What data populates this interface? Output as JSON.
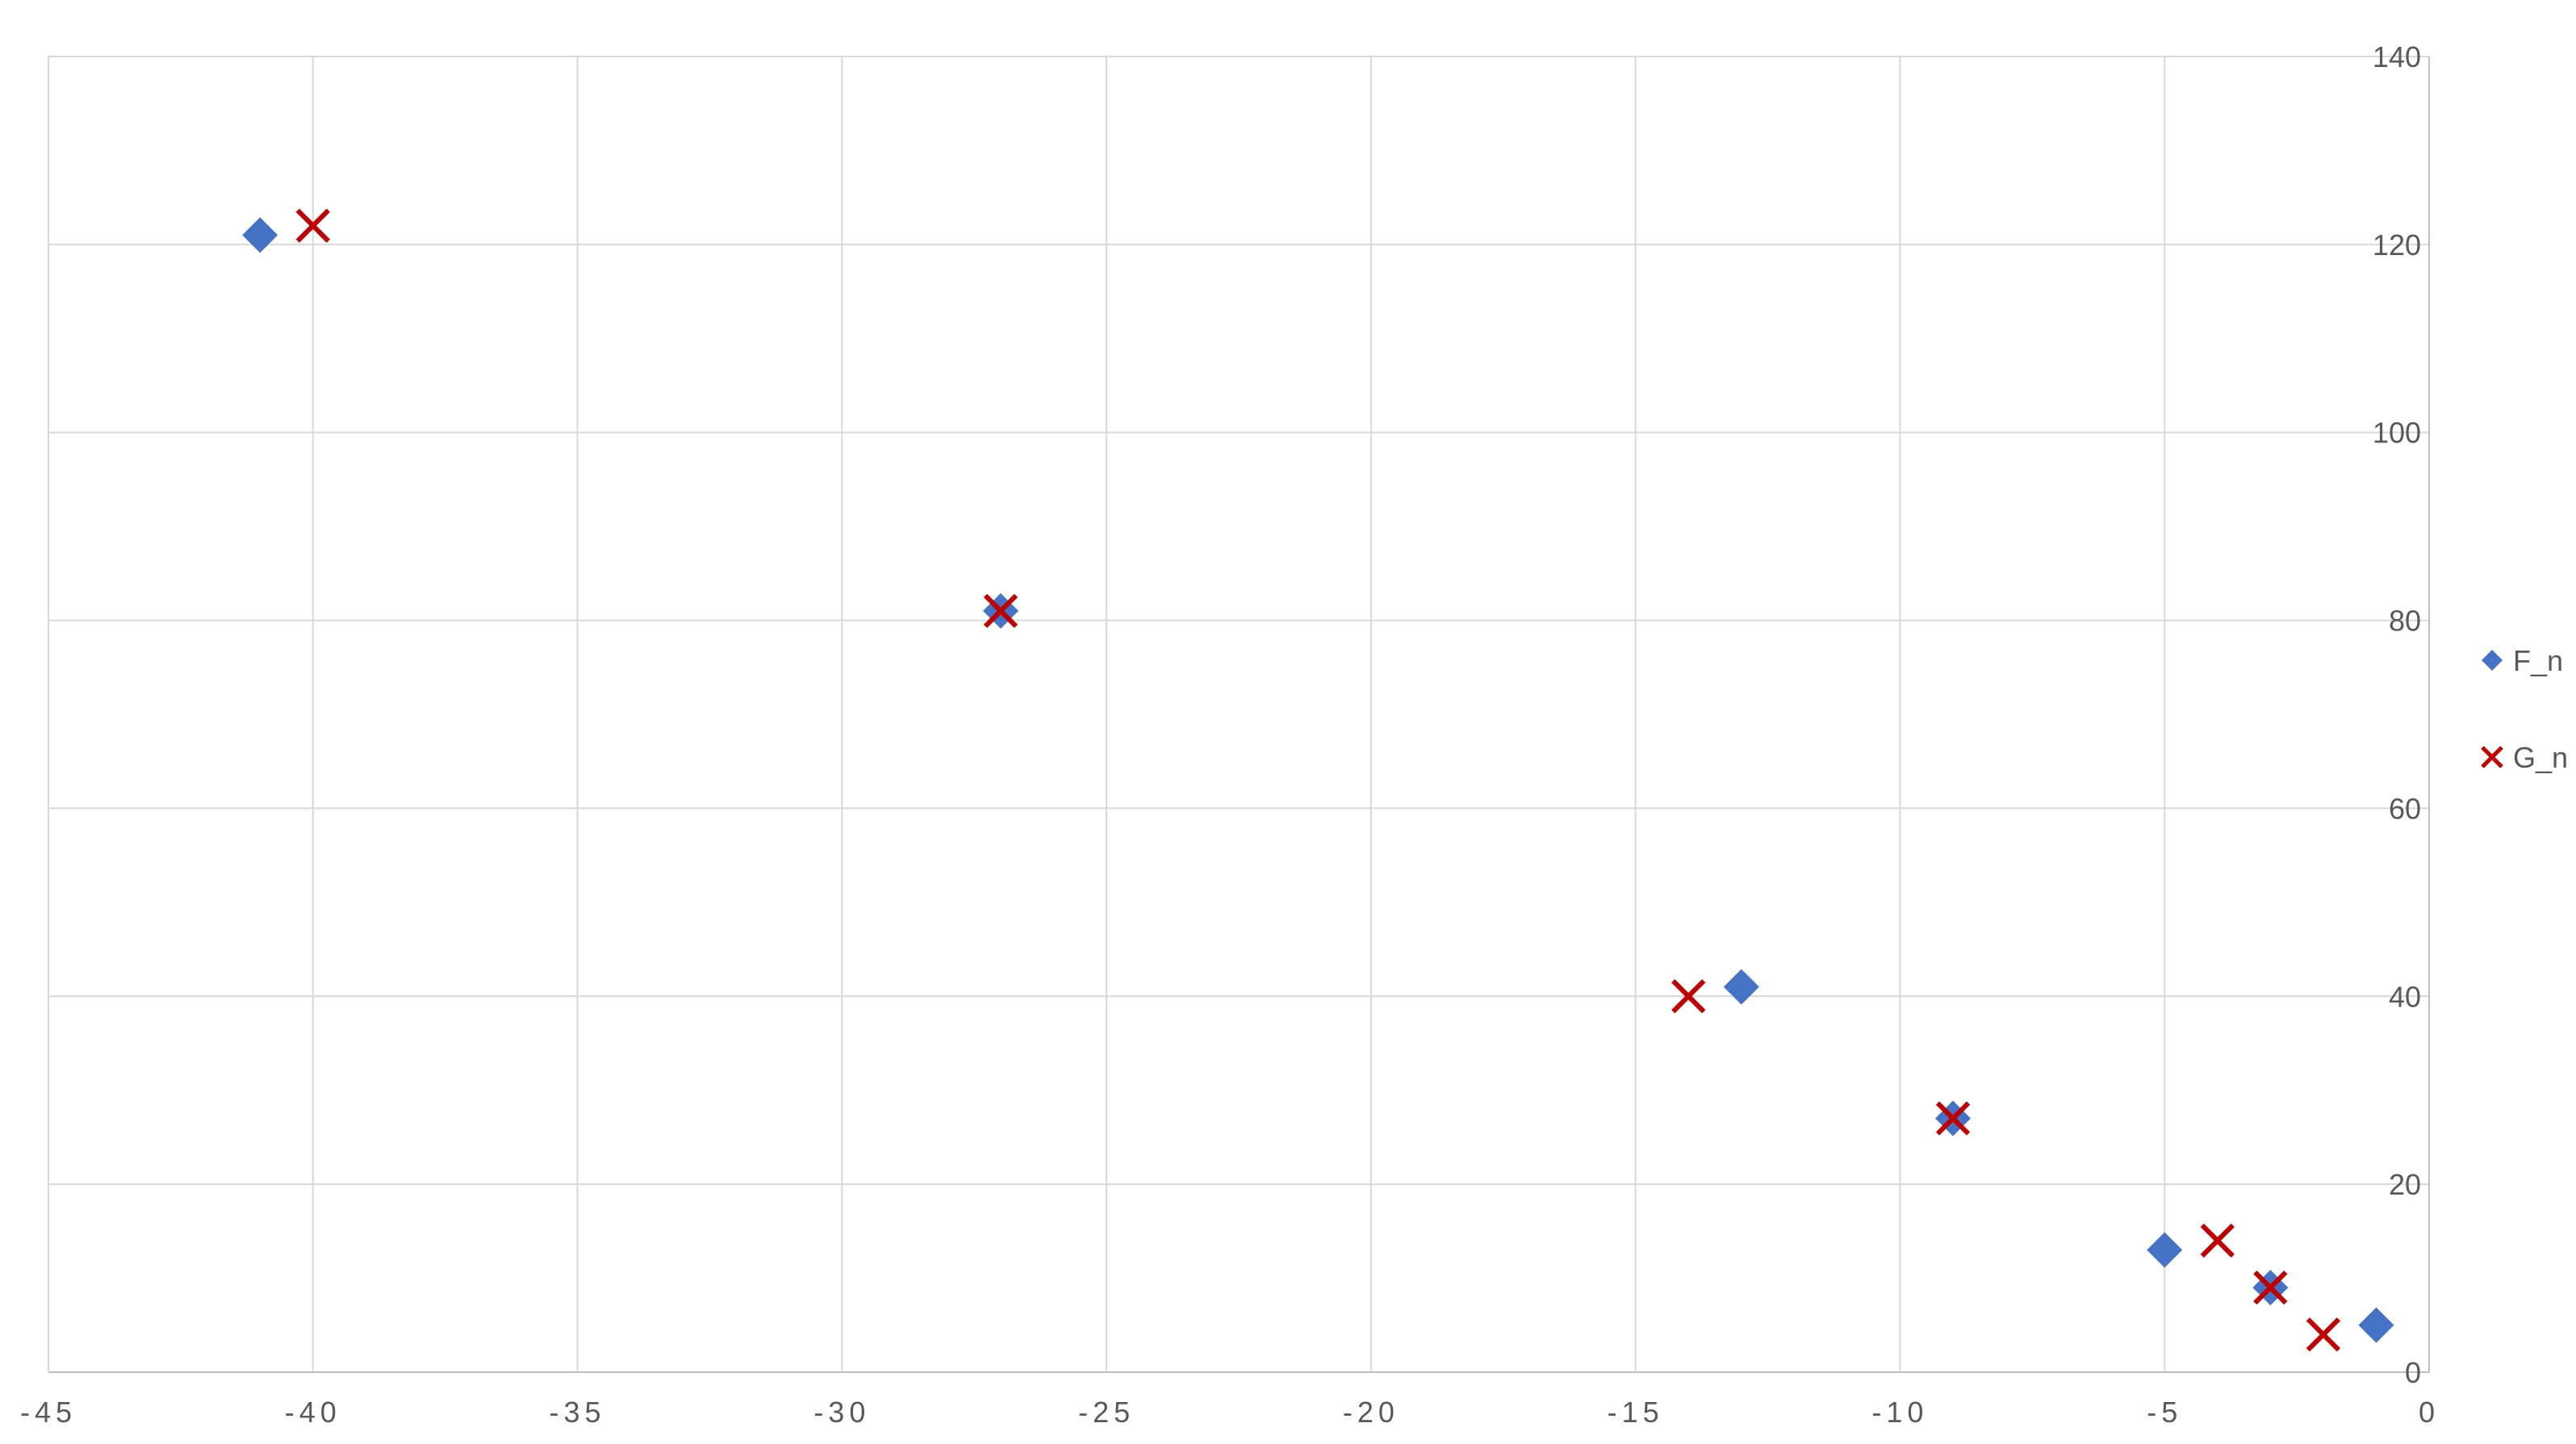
{
  "chart_data": {
    "type": "scatter",
    "title": "",
    "xlabel": "",
    "ylabel": "",
    "xlim": [
      -45,
      0
    ],
    "ylim": [
      0,
      140
    ],
    "x_ticks": [
      -45,
      -40,
      -35,
      -30,
      -25,
      -20,
      -15,
      -10,
      -5,
      0
    ],
    "y_ticks": [
      0,
      20,
      40,
      60,
      80,
      100,
      120,
      140
    ],
    "grid": true,
    "y_axis_position": "right",
    "legend_position": "right",
    "series": [
      {
        "name": "F_n",
        "marker": "diamond",
        "color": "#4472C4",
        "points": [
          {
            "x": -41,
            "y": 121
          },
          {
            "x": -27,
            "y": 81
          },
          {
            "x": -13,
            "y": 41
          },
          {
            "x": -9,
            "y": 27
          },
          {
            "x": -5,
            "y": 13
          },
          {
            "x": -3,
            "y": 9
          },
          {
            "x": -1,
            "y": 5
          }
        ]
      },
      {
        "name": "G_n",
        "marker": "x",
        "color": "#C00000",
        "points": [
          {
            "x": -40,
            "y": 122
          },
          {
            "x": -27,
            "y": 81
          },
          {
            "x": -14,
            "y": 40
          },
          {
            "x": -9,
            "y": 27
          },
          {
            "x": -4,
            "y": 14
          },
          {
            "x": -3,
            "y": 9
          },
          {
            "x": -2,
            "y": 4
          }
        ]
      }
    ]
  }
}
